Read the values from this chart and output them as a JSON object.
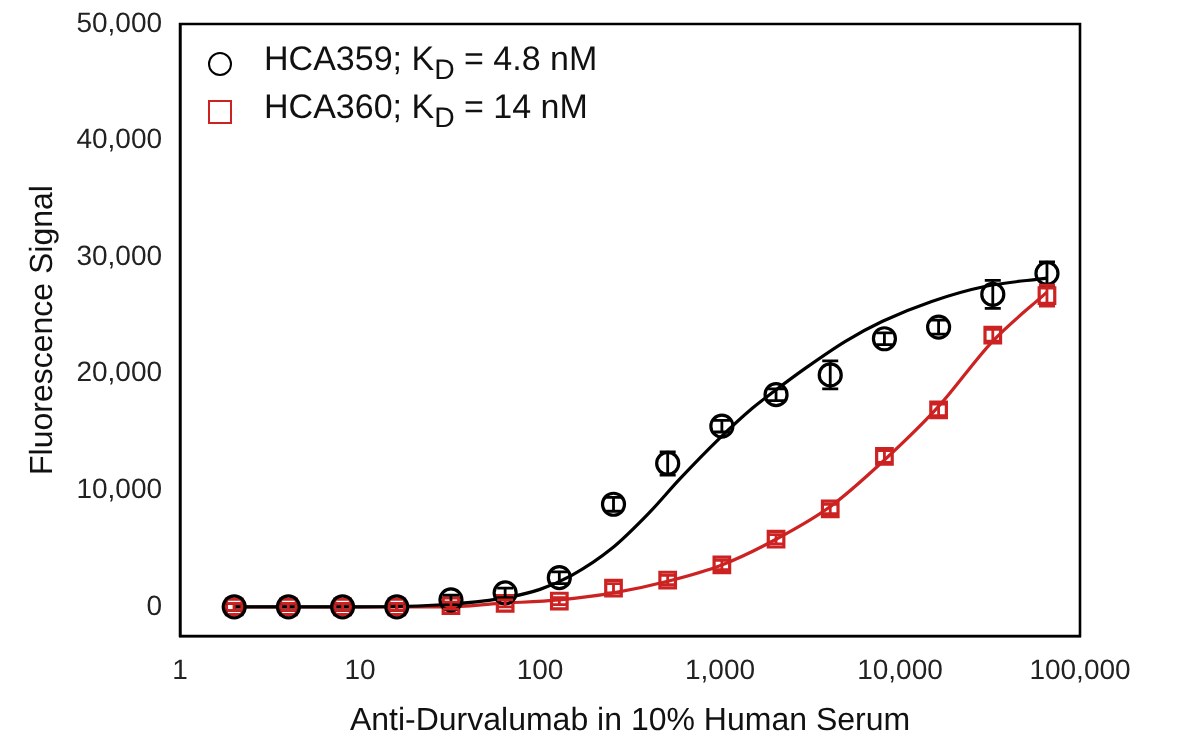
{
  "chart_data": {
    "type": "scatter",
    "xlabel": "Anti-Durvalumab in 10% Human Serum",
    "ylabel": "Fluorescence Signal",
    "log": "x",
    "xlim": [
      1,
      100000
    ],
    "xticks": [
      1,
      10,
      100,
      {
        "value": 1000,
        "label": "1,000"
      },
      {
        "value": 10000,
        "label": "10,000"
      },
      {
        "value": 100000,
        "label": "100,000"
      }
    ],
    "ylim": [
      -2500,
      50000
    ],
    "yticks": [
      0,
      {
        "value": 10000,
        "label": "10,000"
      },
      {
        "value": 20000,
        "label": "20,000"
      },
      {
        "value": 30000,
        "label": "30,000"
      },
      {
        "value": 40000,
        "label": "40,000"
      },
      {
        "value": 50000,
        "label": "50,000"
      }
    ],
    "grid": false,
    "legend": "top left",
    "series": [
      {
        "name": "HCA359; K$_{D}$ = 4.8 nM",
        "marker": "circle",
        "color": "#000000",
        "x": [
          2,
          4,
          8,
          16,
          32,
          64,
          128,
          256,
          512,
          1024,
          2048,
          4096,
          8192,
          16384,
          32768,
          65536
        ],
        "values": [
          0,
          0,
          0,
          0,
          600,
          1200,
          2500,
          8800,
          12300,
          15500,
          18200,
          19900,
          23000,
          24000,
          26800,
          28600
        ],
        "errors": [
          300,
          300,
          300,
          300,
          400,
          400,
          500,
          600,
          1000,
          500,
          500,
          1200,
          500,
          600,
          1200,
          1000
        ]
      },
      {
        "name": "HCA360; K$_{D}$ = 14 nM",
        "marker": "square",
        "color": "#cc2222",
        "x": [
          2,
          4,
          8,
          16,
          32,
          64,
          128,
          256,
          512,
          1024,
          2048,
          4096,
          8192,
          16384,
          32768,
          65536
        ],
        "values": [
          0,
          0,
          0,
          0,
          100,
          300,
          500,
          1600,
          2300,
          3600,
          5800,
          8400,
          12900,
          16900,
          23300,
          26700
        ],
        "errors": [
          300,
          300,
          300,
          300,
          300,
          300,
          300,
          400,
          400,
          400,
          400,
          400,
          500,
          500,
          500,
          900
        ]
      },
      {
        "type": "line",
        "marker": "none",
        "color": "#000000",
        "x": [
          2,
          10,
          30,
          60,
          100,
          150,
          250,
          400,
          600,
          1000,
          1500,
          2000,
          3000,
          5000,
          8000,
          15000,
          30000,
          65536
        ],
        "values": [
          0,
          0,
          200,
          700,
          1500,
          2700,
          5000,
          8000,
          11000,
          14500,
          17000,
          18500,
          20500,
          22800,
          24500,
          26200,
          27500,
          28200
        ]
      },
      {
        "type": "line",
        "marker": "none",
        "color": "#cc2222",
        "x": [
          2,
          10,
          30,
          60,
          128,
          256,
          512,
          1024,
          2048,
          4096,
          8192,
          16384,
          32768,
          65536
        ],
        "values": [
          0,
          0,
          0,
          300,
          600,
          1200,
          2200,
          3600,
          5800,
          8600,
          12600,
          17200,
          22800,
          27000
        ]
      }
    ]
  }
}
